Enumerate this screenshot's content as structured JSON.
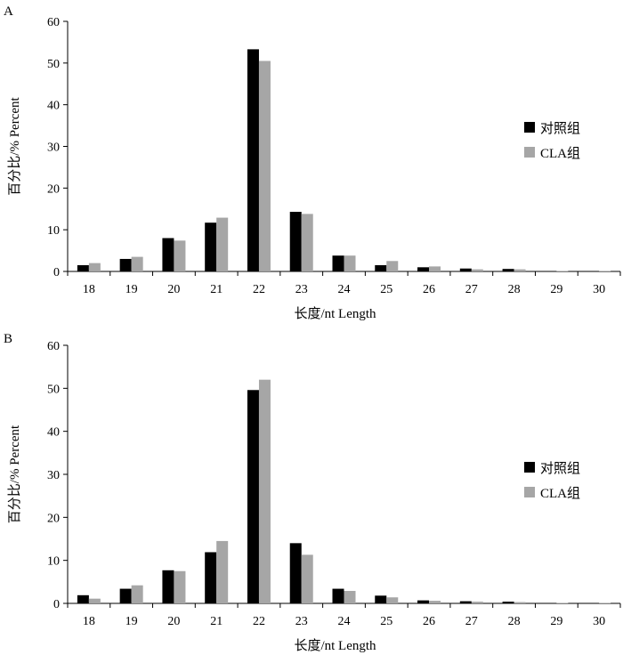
{
  "chart_data": [
    {
      "type": "bar",
      "panel": "A",
      "categories": [
        "18",
        "19",
        "20",
        "21",
        "22",
        "23",
        "24",
        "25",
        "26",
        "27",
        "28",
        "29",
        "30"
      ],
      "series": [
        {
          "name": "对照组",
          "color": "#000000",
          "values": [
            1.5,
            3.0,
            8.0,
            11.7,
            53.3,
            14.3,
            3.8,
            1.5,
            1.0,
            0.7,
            0.6,
            0.1,
            0.1
          ]
        },
        {
          "name": "CLA组",
          "color": "#a6a6a6",
          "values": [
            2.0,
            3.5,
            7.4,
            12.9,
            50.5,
            13.8,
            3.8,
            2.5,
            1.2,
            0.5,
            0.5,
            0.1,
            0.1
          ]
        }
      ],
      "ylim": [
        0,
        60
      ],
      "yticks": [
        "0",
        "10",
        "20",
        "30",
        "40",
        "50",
        "60"
      ],
      "xlabel": "长度/nt  Length",
      "ylabel": "百分比/% Percent",
      "legend_position": "right"
    },
    {
      "type": "bar",
      "panel": "B",
      "categories": [
        "18",
        "19",
        "20",
        "21",
        "22",
        "23",
        "24",
        "25",
        "26",
        "27",
        "28",
        "29",
        "30"
      ],
      "series": [
        {
          "name": "对照组",
          "color": "#000000",
          "values": [
            1.9,
            3.4,
            7.7,
            11.9,
            49.6,
            14.0,
            3.4,
            1.8,
            0.7,
            0.5,
            0.4,
            0.1,
            0.1
          ]
        },
        {
          "name": "CLA组",
          "color": "#a6a6a6",
          "values": [
            1.1,
            4.2,
            7.5,
            14.5,
            52.0,
            11.3,
            2.9,
            1.4,
            0.6,
            0.4,
            0.3,
            0.1,
            0.1
          ]
        }
      ],
      "ylim": [
        0,
        60
      ],
      "yticks": [
        "0",
        "10",
        "20",
        "30",
        "40",
        "50",
        "60"
      ],
      "xlabel": "长度/nt  Length",
      "ylabel": "百分比/% Percent",
      "legend_position": "right"
    }
  ]
}
